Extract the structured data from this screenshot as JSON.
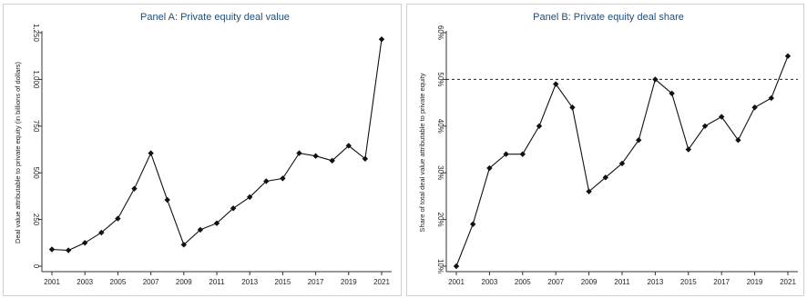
{
  "chart_data": [
    {
      "type": "line",
      "title": "Panel A: Private equity deal value",
      "ylabel": "Deal value attributable to private equity (in billions of dollars)",
      "xlabel": "",
      "x": [
        2001,
        2002,
        2003,
        2004,
        2005,
        2006,
        2007,
        2008,
        2009,
        2010,
        2011,
        2012,
        2013,
        2014,
        2015,
        2016,
        2017,
        2018,
        2019,
        2020,
        2021
      ],
      "series": [
        {
          "values": [
            90,
            85,
            125,
            180,
            255,
            415,
            605,
            355,
            115,
            195,
            230,
            310,
            370,
            455,
            470,
            605,
            590,
            565,
            645,
            575,
            1215
          ]
        }
      ],
      "ylim": [
        0,
        1250
      ],
      "yticks": [
        0,
        250,
        500,
        750,
        1000,
        1250
      ],
      "ytick_labels": [
        "0",
        "250",
        "500",
        "750",
        "1,000",
        "1,250"
      ],
      "xticks": [
        2001,
        2003,
        2005,
        2007,
        2009,
        2011,
        2013,
        2015,
        2017,
        2019,
        2021
      ],
      "grid": false
    },
    {
      "type": "line",
      "title": "Panel B: Private equity deal share",
      "ylabel": "Share of total deal value attributable to private equity",
      "xlabel": "",
      "x": [
        2001,
        2002,
        2003,
        2004,
        2005,
        2006,
        2007,
        2008,
        2009,
        2010,
        2011,
        2012,
        2013,
        2014,
        2015,
        2016,
        2017,
        2018,
        2019,
        2020,
        2021
      ],
      "series": [
        {
          "values": [
            10,
            19,
            31,
            34,
            34,
            40,
            49,
            44,
            26,
            29,
            32,
            37,
            50,
            47,
            35,
            40,
            42,
            37,
            44,
            46,
            55
          ]
        }
      ],
      "ylim": [
        10,
        60
      ],
      "yticks": [
        10,
        20,
        30,
        40,
        50,
        60
      ],
      "ytick_labels": [
        "10%",
        "20%",
        "30%",
        "40%",
        "50%",
        "60%"
      ],
      "xticks": [
        2001,
        2003,
        2005,
        2007,
        2009,
        2011,
        2013,
        2015,
        2017,
        2019,
        2021
      ],
      "reference_line": {
        "y": 50,
        "style": "dashed"
      },
      "grid": false
    }
  ]
}
